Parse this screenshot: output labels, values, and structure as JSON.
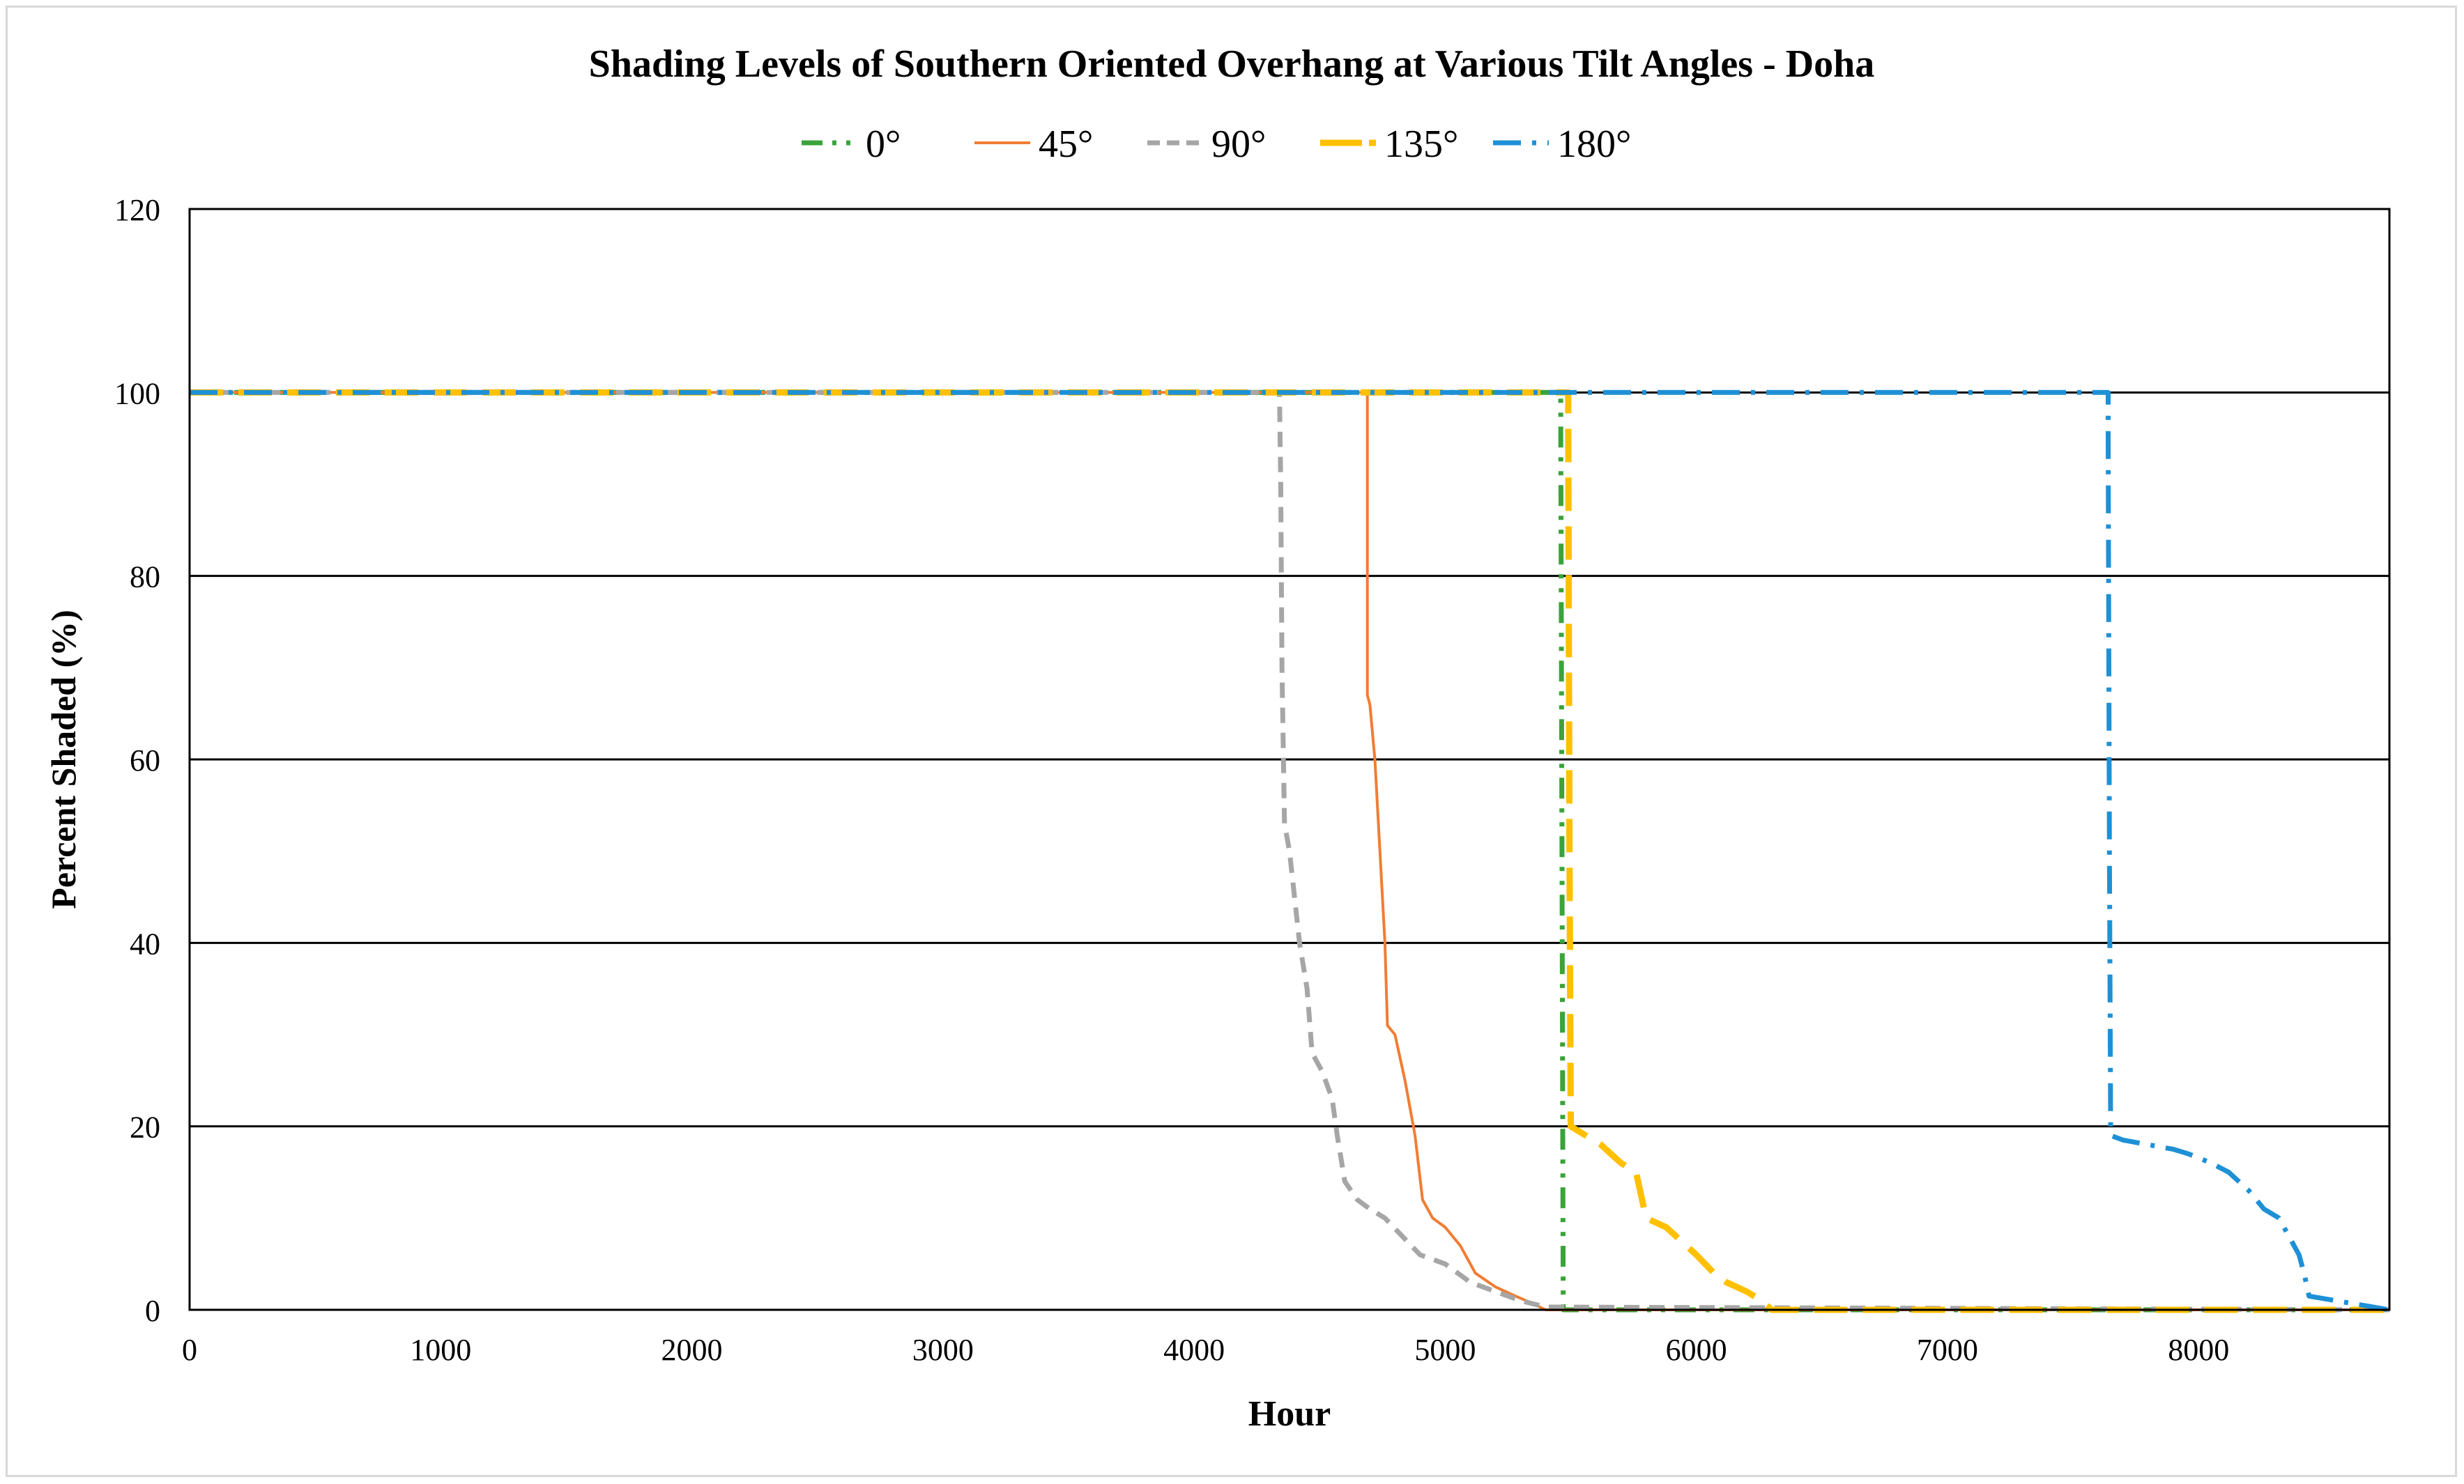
{
  "chart_data": {
    "type": "line",
    "title": "Shading Levels of Southern Oriented Overhang at Various Tilt Angles - Doha",
    "xlabel": "Hour",
    "ylabel": "Percent Shaded (%)",
    "xlim": [
      0,
      8760
    ],
    "ylim": [
      0,
      120
    ],
    "x_ticks": [
      0,
      1000,
      2000,
      3000,
      4000,
      5000,
      6000,
      7000,
      8000
    ],
    "y_ticks": [
      0,
      20,
      40,
      60,
      80,
      100,
      120
    ],
    "grid": "horizontal",
    "legend_position": "top-center",
    "series": [
      {
        "name": "0°",
        "color": "#3aa33a",
        "style": "dash-dot-dot",
        "x": [
          0,
          5460,
          5460,
          5465,
          5470,
          8760
        ],
        "y": [
          100,
          100,
          97,
          50,
          0,
          0
        ]
      },
      {
        "name": "45°",
        "color": "#f07d33",
        "style": "solid",
        "x": [
          0,
          4690,
          4690,
          4700,
          4720,
          4740,
          4760,
          4770,
          4800,
          4840,
          4880,
          4910,
          4950,
          5000,
          5060,
          5120,
          5200,
          5280,
          5340,
          5400,
          8760
        ],
        "y": [
          100,
          100,
          67,
          66,
          60,
          50,
          40,
          31,
          30,
          25,
          19,
          12,
          10,
          9,
          7,
          4,
          2.5,
          1.5,
          0.8,
          0,
          0
        ]
      },
      {
        "name": "90°",
        "color": "#a6a6a6",
        "style": "dash",
        "x": [
          0,
          4340,
          4345,
          4350,
          4360,
          4380,
          4400,
          4420,
          4450,
          4470,
          4510,
          4550,
          4570,
          4600,
          4650,
          4700,
          4760,
          4830,
          4900,
          5000,
          5100,
          5200,
          5300,
          5400,
          8760
        ],
        "y": [
          100,
          100,
          90,
          70,
          53,
          50,
          45,
          40,
          35,
          28,
          26,
          23,
          19,
          14,
          12,
          11,
          10,
          8,
          6,
          5,
          3,
          2,
          1,
          0.3,
          0
        ]
      },
      {
        "name": "135°",
        "color": "#ffc000",
        "style": "long-dash",
        "x": [
          0,
          5490,
          5490,
          5495,
          5500,
          5560,
          5620,
          5700,
          5760,
          5800,
          5880,
          5960,
          6000,
          6070,
          6120,
          6200,
          6260,
          6300,
          8760
        ],
        "y": [
          100,
          100,
          97,
          50,
          20,
          19,
          18,
          16,
          15,
          10,
          9,
          7,
          6,
          4,
          3,
          2,
          1,
          0,
          0
        ]
      },
      {
        "name": "180°",
        "color": "#1e90d6",
        "style": "dash-dot",
        "x": [
          0,
          7640,
          7640,
          7645,
          7650,
          7700,
          7800,
          7900,
          7960,
          8050,
          8120,
          8200,
          8260,
          8320,
          8380,
          8400,
          8420,
          8440,
          8760
        ],
        "y": [
          100,
          100,
          95,
          50,
          19,
          18.5,
          18,
          17.5,
          17,
          16,
          15,
          13,
          11,
          10,
          7,
          6,
          4,
          1.5,
          0
        ]
      }
    ]
  }
}
